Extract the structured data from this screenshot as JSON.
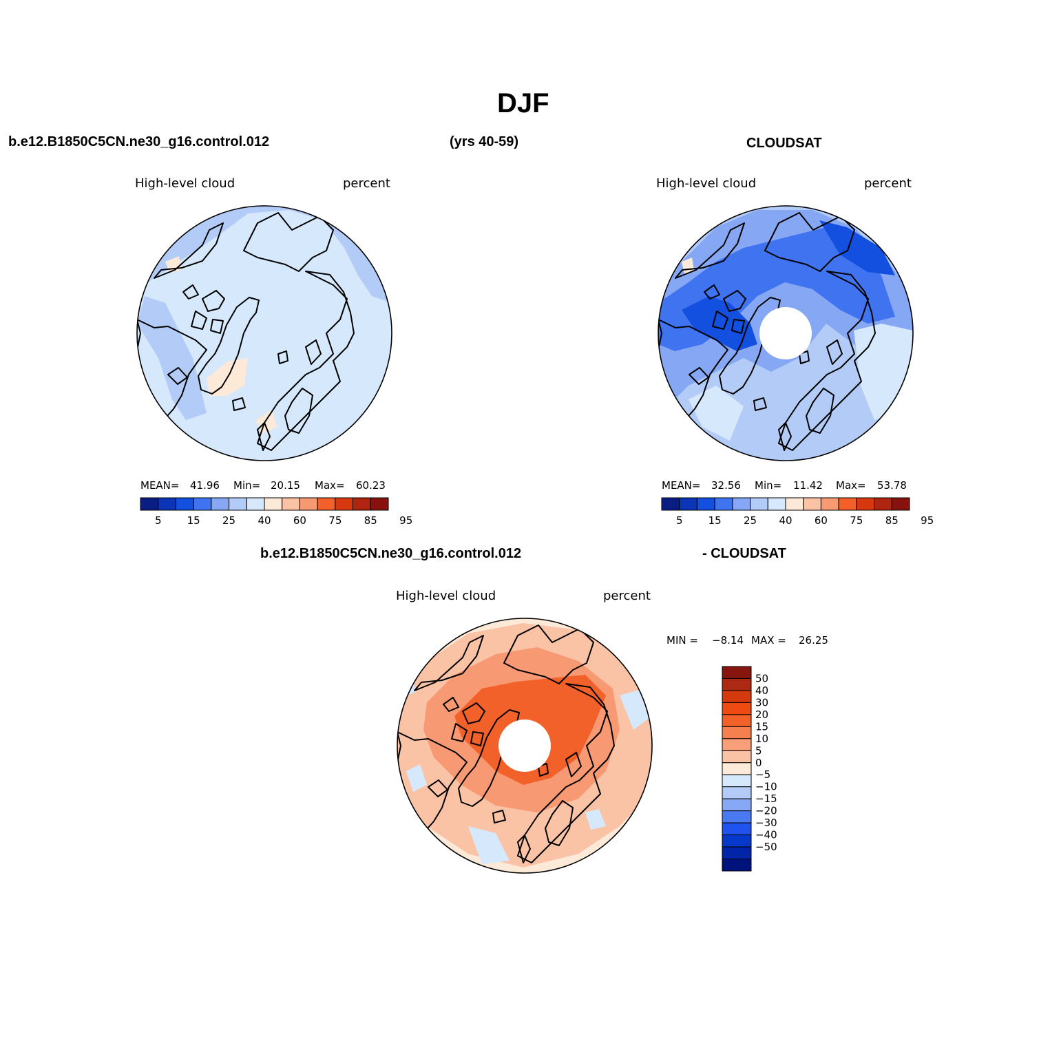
{
  "title": "DJF",
  "top_left_header": {
    "case": "b.e12.B1850C5CN.ne30_g16.control.012",
    "years": "(yrs 40-59)"
  },
  "top_right_header": "CLOUDSAT",
  "diff_header": {
    "case": "b.e12.B1850C5CN.ne30_g16.control.012",
    "minus": "- CLOUDSAT"
  },
  "panels": [
    {
      "id": "model",
      "variable": "High-level cloud",
      "units": "percent",
      "stats": {
        "mean_label": "MEAN=",
        "mean": "41.96",
        "min_label": "Min=",
        "min": "20.15",
        "max_label": "Max=",
        "max": "60.23"
      },
      "polar_hole": false
    },
    {
      "id": "cloudsat",
      "variable": "High-level cloud",
      "units": "percent",
      "stats": {
        "mean_label": "MEAN=",
        "mean": "32.56",
        "min_label": "Min=",
        "min": "11.42",
        "max_label": "Max=",
        "max": "53.78"
      },
      "polar_hole": true
    },
    {
      "id": "difference",
      "variable": "High-level cloud",
      "units": "percent",
      "stats": {
        "min_label": "MIN =",
        "min": "-8.14",
        "max_label": "MAX =",
        "max": "26.25"
      },
      "polar_hole": true
    }
  ],
  "colorbar_abs": {
    "colors": [
      "#0a1d82",
      "#0b35b5",
      "#1450e0",
      "#3f73f0",
      "#86a8f4",
      "#b3cbf7",
      "#d6e8fb",
      "#fde9d8",
      "#fbc3a6",
      "#f79a73",
      "#f3612b",
      "#d8380f",
      "#b02510",
      "#87120f"
    ],
    "tick_labels": [
      "5",
      "15",
      "25",
      "40",
      "60",
      "75",
      "85",
      "95"
    ]
  },
  "colorbar_diff": {
    "colors": [
      "#00137d",
      "#0025a8",
      "#0539c9",
      "#1f52ee",
      "#4a7af2",
      "#87a8f4",
      "#b4cbf7",
      "#d6e8fb",
      "#fde9d8",
      "#fbc3a6",
      "#f89e78",
      "#f57f4e",
      "#f3612b",
      "#ee4a12",
      "#d43a0e",
      "#ae2911",
      "#86150f"
    ],
    "tick_labels": [
      "50",
      "40",
      "30",
      "20",
      "15",
      "10",
      "5",
      "0",
      "-5",
      "-10",
      "-15",
      "-20",
      "-30",
      "-40",
      "-50"
    ]
  },
  "colors": {
    "land_outline": "#000000",
    "model_base": "#d6e8fb",
    "model_mid": "#b3cbf7",
    "model_dark": "#86a8f4",
    "cloudsat_base": "#b3cbf7",
    "cloudsat_mid": "#86a8f4",
    "cloudsat_dark": "#3f73f0",
    "cloudsat_darkest": "#1450e0",
    "diff_base": "#fde9d8",
    "diff_mid": "#fbc3a6",
    "diff_strong": "#f79a73",
    "diff_hot": "#f3612b",
    "diff_blue": "#d6e8fb",
    "warm_patch": "#fde9d8"
  }
}
